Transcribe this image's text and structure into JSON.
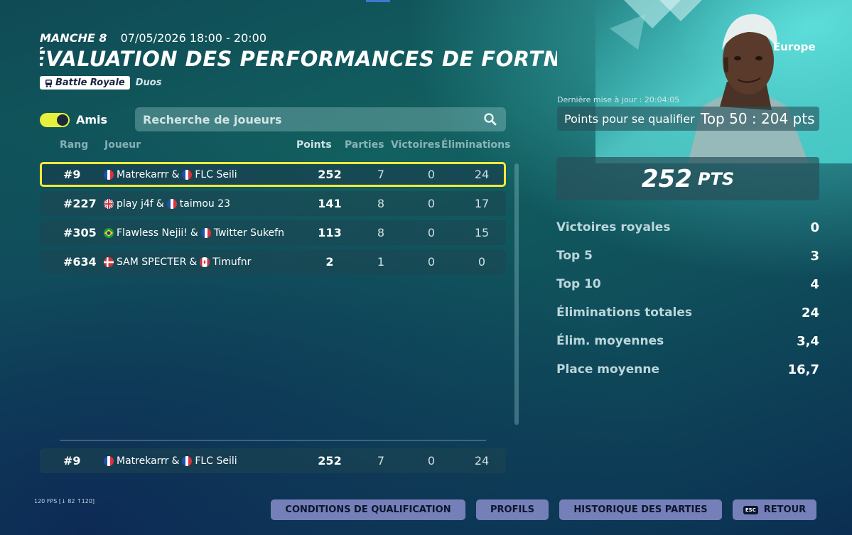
{
  "header": {
    "round": "MANCHE 8",
    "datetime": "07/05/2026 18:00 - 20:00",
    "title": "ÉVALUATION DES PERFORMANCES DE FORTNITE",
    "mode_badge": "Battle Royale",
    "mode_sub": "Duos"
  },
  "filter": {
    "toggle_label": "Amis",
    "toggle_on": true,
    "search_placeholder": "Recherche de joueurs"
  },
  "table": {
    "columns": [
      "Rang",
      "Joueur",
      "Points",
      "Parties",
      "Victoires",
      "Éliminations"
    ],
    "rows": [
      {
        "rank": "#9",
        "p1": "Matrekarrr",
        "p2": "FLC Seili",
        "amp": "&",
        "points": "252",
        "games": "7",
        "wins": "0",
        "elims": "24",
        "flag1": "fr",
        "flag2": "fr"
      },
      {
        "rank": "#227",
        "p1": "play j4f",
        "p2": "taimou 23",
        "amp": "&",
        "points": "141",
        "games": "8",
        "wins": "0",
        "elims": "17",
        "flag1": "gb",
        "flag2": "fr"
      },
      {
        "rank": "#305",
        "p1": "Flawless Nejii!",
        "p2": "Twitter Sukefn",
        "amp": "&",
        "points": "113",
        "games": "8",
        "wins": "0",
        "elims": "15",
        "flag1": "br",
        "flag2": "fr"
      },
      {
        "rank": "#634",
        "p1": "SAM SPECTER",
        "p2": "Timufnr",
        "amp": "&",
        "points": "2",
        "games": "1",
        "wins": "0",
        "elims": "0",
        "flag1": "dk",
        "flag2": "ca"
      }
    ],
    "own_row": {
      "rank": "#9",
      "p1": "Matrekarrr",
      "p2": "FLC Seili",
      "amp": "&",
      "points": "252",
      "games": "7",
      "wins": "0",
      "elims": "24",
      "flag1": "fr",
      "flag2": "fr"
    }
  },
  "panel": {
    "region": "Europe",
    "updated": "Dernière mise à jour : 20:04:05",
    "qualify_label": "Points pour se qualifier",
    "qualify_value": "Top 50 : 204 pts",
    "points": "252",
    "points_unit": "PTS",
    "stats": [
      {
        "label": "Victoires royales",
        "value": "0"
      },
      {
        "label": "Top 5",
        "value": "3"
      },
      {
        "label": "Top 10",
        "value": "4"
      },
      {
        "label": "Éliminations totales",
        "value": "24"
      },
      {
        "label": "Élim. moyennes",
        "value": "3,4"
      },
      {
        "label": "Place moyenne",
        "value": "16,7"
      }
    ]
  },
  "footer": {
    "fps": "120 FPS [↓ 82 ↑120]",
    "buttons": [
      "CONDITIONS DE QUALIFICATION",
      "PROFILS",
      "HISTORIQUE DES PARTIES",
      "RETOUR"
    ],
    "esc_key": "ESC"
  },
  "colors": {
    "highlight": "#f2ea3a",
    "button": "#7580b8",
    "toggle": "#e6f03c"
  }
}
